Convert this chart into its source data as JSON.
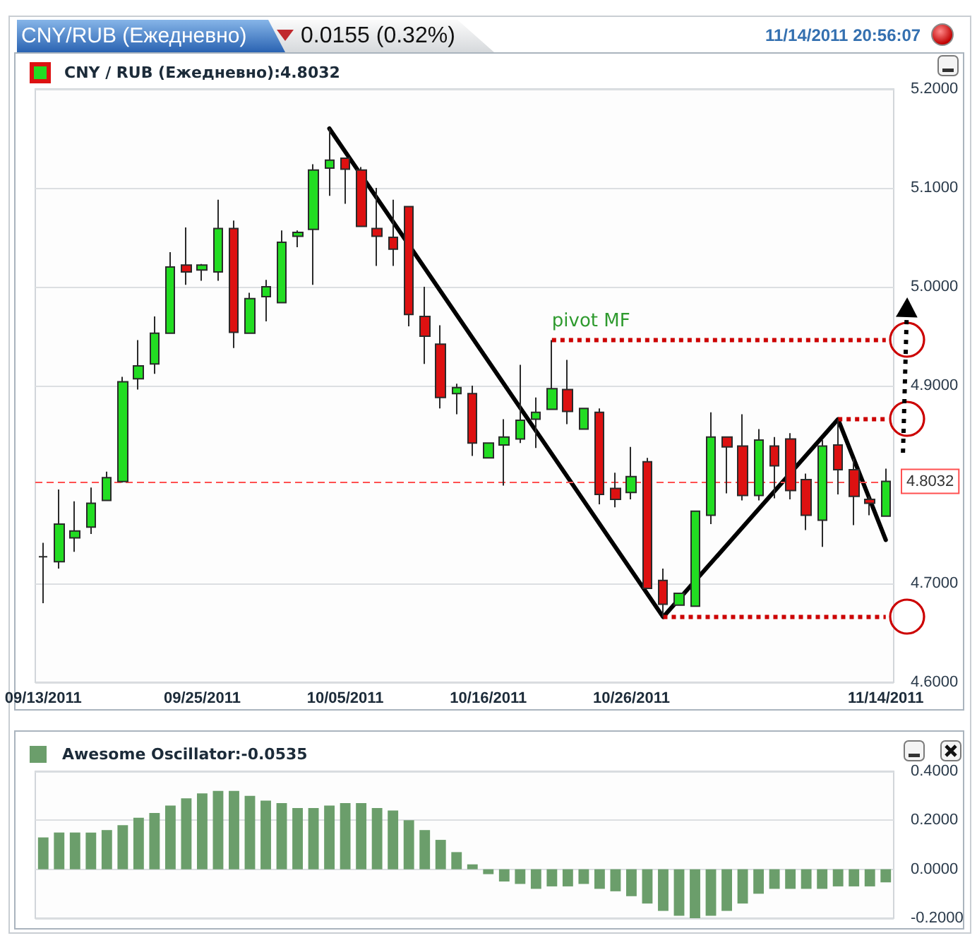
{
  "chart_data": [
    {
      "type": "candlestick",
      "title": "CNY/RUB (Ежедневно)",
      "annotations": [
        "0.0155 (0.32%)",
        "11/14/2011 20:56:07"
      ],
      "categories": [
        "09/13/2011",
        null,
        null,
        null,
        null,
        null,
        null,
        null,
        null,
        null,
        "09/25/2011",
        null,
        null,
        null,
        null,
        null,
        null,
        null,
        null,
        "10/05/2011",
        null,
        null,
        null,
        null,
        null,
        null,
        null,
        null,
        "10/16/2011",
        null,
        null,
        null,
        null,
        null,
        null,
        null,
        null,
        "10/26/2011",
        null,
        null,
        null,
        null,
        null,
        null,
        null,
        null,
        null,
        null,
        null,
        null,
        null,
        null,
        null,
        "11/14/2011"
      ],
      "series": [
        {
          "name": "CNY / RUB (Ежедневно):4.8032",
          "ohlc": [
            [
              4.727,
              4.741,
              4.68,
              4.727
            ],
            [
              4.722,
              4.795,
              4.715,
              4.76
            ],
            [
              4.746,
              4.783,
              4.732,
              4.753
            ],
            [
              4.757,
              4.797,
              4.75,
              4.781
            ],
            [
              4.784,
              4.813,
              4.784,
              4.807
            ],
            [
              4.803,
              4.909,
              4.802,
              4.904
            ],
            [
              4.907,
              4.946,
              4.896,
              4.92
            ],
            [
              4.922,
              4.97,
              4.912,
              4.953
            ],
            [
              4.953,
              5.035,
              4.953,
              5.02
            ],
            [
              5.022,
              5.06,
              5.002,
              5.015
            ],
            [
              5.017,
              5.023,
              5.006,
              5.022
            ],
            [
              5.015,
              5.088,
              5.006,
              5.059
            ],
            [
              5.059,
              5.067,
              4.938,
              4.954
            ],
            [
              4.953,
              4.994,
              4.953,
              4.988
            ],
            [
              4.99,
              5.007,
              4.965,
              5.0
            ],
            [
              4.984,
              5.057,
              4.984,
              5.045
            ],
            [
              5.051,
              5.057,
              5.04,
              5.055
            ],
            [
              5.058,
              5.124,
              5.002,
              5.118
            ],
            [
              5.12,
              5.16,
              5.092,
              5.128
            ],
            [
              5.13,
              5.13,
              5.084,
              5.119
            ],
            [
              5.118,
              5.121,
              5.061,
              5.061
            ],
            [
              5.059,
              5.1,
              5.021,
              5.051
            ],
            [
              5.05,
              5.088,
              5.021,
              5.038
            ],
            [
              5.081,
              5.081,
              4.96,
              4.972
            ],
            [
              4.97,
              5.0,
              4.922,
              4.95
            ],
            [
              4.942,
              4.961,
              4.877,
              4.888
            ],
            [
              4.892,
              4.902,
              4.871,
              4.898
            ],
            [
              4.892,
              4.9,
              4.829,
              4.842
            ],
            [
              4.827,
              4.842,
              4.827,
              4.842
            ],
            [
              4.84,
              4.866,
              4.799,
              4.848
            ],
            [
              4.846,
              4.921,
              4.842,
              4.865
            ],
            [
              4.866,
              4.888,
              4.837,
              4.873
            ],
            [
              4.876,
              4.946,
              4.876,
              4.897
            ],
            [
              4.896,
              4.926,
              4.861,
              4.874
            ],
            [
              4.856,
              4.877,
              4.856,
              4.877
            ],
            [
              4.873,
              4.877,
              4.78,
              4.79
            ],
            [
              4.796,
              4.812,
              4.777,
              4.785
            ],
            [
              4.792,
              4.838,
              4.785,
              4.808
            ],
            [
              4.823,
              4.827,
              4.695,
              4.695
            ],
            [
              4.703,
              4.715,
              4.666,
              4.679
            ],
            [
              4.678,
              4.69,
              4.678,
              4.69
            ],
            [
              4.677,
              4.773,
              4.677,
              4.773
            ],
            [
              4.769,
              4.873,
              4.76,
              4.848
            ],
            [
              4.848,
              4.848,
              4.791,
              4.838
            ],
            [
              4.839,
              4.871,
              4.784,
              4.789
            ],
            [
              4.789,
              4.856,
              4.784,
              4.845
            ],
            [
              4.839,
              4.848,
              4.786,
              4.819
            ],
            [
              4.846,
              4.852,
              4.785,
              4.794
            ],
            [
              4.805,
              4.811,
              4.754,
              4.769
            ],
            [
              4.764,
              4.845,
              4.737,
              4.839
            ],
            [
              4.84,
              4.866,
              4.79,
              4.815
            ],
            [
              4.815,
              4.826,
              4.759,
              4.788
            ],
            [
              4.785,
              4.788,
              4.769,
              4.781
            ],
            [
              4.768,
              4.816,
              4.768,
              4.8032
            ]
          ],
          "colors": [
            "#2a2a2a",
            "#22dd22",
            "#22dd22",
            "#22dd22",
            "#22dd22",
            "#22dd22",
            "#22dd22",
            "#22dd22",
            "#22dd22",
            "#dd1111",
            "#22dd22",
            "#22dd22",
            "#dd1111",
            "#22dd22",
            "#22dd22",
            "#22dd22",
            "#22dd22",
            "#22dd22",
            "#22dd22",
            "#dd1111",
            "#dd1111",
            "#dd1111",
            "#dd1111",
            "#dd1111",
            "#dd1111",
            "#dd1111",
            "#22dd22",
            "#dd1111",
            "#22dd22",
            "#22dd22",
            "#22dd22",
            "#22dd22",
            "#22dd22",
            "#dd1111",
            "#22dd22",
            "#dd1111",
            "#dd1111",
            "#22dd22",
            "#dd1111",
            "#dd1111",
            "#22dd22",
            "#22dd22",
            "#22dd22",
            "#dd1111",
            "#dd1111",
            "#22dd22",
            "#dd1111",
            "#dd1111",
            "#dd1111",
            "#22dd22",
            "#dd1111",
            "#dd1111",
            "#dd1111",
            "#22dd22"
          ]
        },
        {
          "type": "line",
          "color": "#000000",
          "values": [
            null,
            null,
            null,
            null,
            null,
            null,
            null,
            null,
            null,
            null,
            null,
            null,
            null,
            null,
            null,
            null,
            null,
            null,
            5.16,
            null,
            null,
            null,
            null,
            null,
            null,
            null,
            null,
            null,
            null,
            null,
            null,
            null,
            null,
            null,
            null,
            null,
            null,
            null,
            null,
            4.666,
            null,
            null,
            null,
            null,
            null,
            null,
            null,
            null,
            null,
            null,
            4.866,
            null,
            null,
            4.744
          ]
        },
        {
          "name": "pivot MF",
          "type": "line",
          "color": "#cc0000",
          "line_style": "dotted",
          "values": [
            null,
            null,
            null,
            null,
            null,
            null,
            null,
            null,
            null,
            null,
            null,
            null,
            null,
            null,
            null,
            null,
            null,
            null,
            null,
            null,
            null,
            null,
            null,
            null,
            null,
            null,
            null,
            null,
            null,
            null,
            null,
            null,
            4.946,
            null,
            null,
            null,
            null,
            null,
            null,
            null,
            null,
            null,
            null,
            null,
            null,
            null,
            null,
            null,
            null,
            null,
            null,
            null,
            null,
            4.946
          ]
        },
        {
          "type": "line",
          "color": "#cc0000",
          "line_style": "dotted",
          "values": [
            null,
            null,
            null,
            null,
            null,
            null,
            null,
            null,
            null,
            null,
            null,
            null,
            null,
            null,
            null,
            null,
            null,
            null,
            null,
            null,
            null,
            null,
            null,
            null,
            null,
            null,
            null,
            null,
            null,
            null,
            null,
            null,
            null,
            null,
            null,
            null,
            null,
            null,
            null,
            null,
            null,
            null,
            null,
            null,
            null,
            null,
            null,
            null,
            null,
            null,
            4.866,
            null,
            null,
            4.866
          ]
        },
        {
          "type": "line",
          "color": "#cc0000",
          "line_style": "dotted",
          "values": [
            null,
            null,
            null,
            null,
            null,
            null,
            null,
            null,
            null,
            null,
            null,
            null,
            null,
            null,
            null,
            null,
            null,
            null,
            null,
            null,
            null,
            null,
            null,
            null,
            null,
            null,
            null,
            null,
            null,
            null,
            null,
            null,
            null,
            null,
            null,
            null,
            null,
            null,
            null,
            4.666,
            null,
            null,
            null,
            null,
            null,
            null,
            null,
            null,
            null,
            null,
            null,
            null,
            null,
            4.666
          ]
        }
      ],
      "ylim": [
        4.6,
        5.2
      ],
      "yticks": [
        {
          "value": 4.6,
          "label": "4.6000"
        },
        {
          "value": 4.7,
          "label": "4.7000"
        },
        {
          "value": 4.9,
          "label": "4.9000"
        },
        {
          "value": 5.0,
          "label": "5.0000"
        },
        {
          "value": 5.1,
          "label": "5.1000"
        },
        {
          "value": 5.2,
          "label": "5.2000"
        }
      ],
      "ref_lines": [
        {
          "axis": "y",
          "value": 4.8032,
          "label": "4.8032",
          "color": "#ff5050",
          "line_style": "dashed"
        }
      ],
      "grid": "y",
      "legend": "top left"
    },
    {
      "type": "bar",
      "categories": [
        null,
        null,
        null,
        null,
        null,
        null,
        null,
        null,
        null,
        null,
        null,
        null,
        null,
        null,
        null,
        null,
        null,
        null,
        null,
        null,
        null,
        null,
        null,
        null,
        null,
        null,
        null,
        null,
        null,
        null,
        null,
        null,
        null,
        null,
        null,
        null,
        null,
        null,
        null,
        null,
        null,
        null,
        null,
        null,
        null,
        null,
        null,
        null,
        null,
        null,
        null,
        null,
        null,
        null
      ],
      "series": [
        {
          "name": "Awesome Oscillator:-0.0535",
          "color": "#6b9e6b",
          "values": [
            0.13,
            0.15,
            0.15,
            0.15,
            0.16,
            0.18,
            0.21,
            0.23,
            0.26,
            0.29,
            0.31,
            0.32,
            0.32,
            0.3,
            0.28,
            0.27,
            0.25,
            0.25,
            0.26,
            0.27,
            0.27,
            0.25,
            0.24,
            0.2,
            0.16,
            0.12,
            0.07,
            0.02,
            -0.02,
            -0.05,
            -0.06,
            -0.08,
            -0.07,
            -0.07,
            -0.06,
            -0.08,
            -0.09,
            -0.11,
            -0.14,
            -0.17,
            -0.19,
            -0.2,
            -0.19,
            -0.17,
            -0.14,
            -0.1,
            -0.08,
            -0.08,
            -0.08,
            -0.08,
            -0.07,
            -0.07,
            -0.07,
            -0.0535
          ]
        }
      ],
      "ylim": [
        -0.2,
        0.4
      ],
      "yticks": [
        {
          "value": -0.2,
          "label": "-0.2000"
        },
        {
          "value": 0,
          "label": "0.0000"
        },
        {
          "value": 0.2,
          "label": "0.2000"
        },
        {
          "value": 0.4,
          "label": "0.4000"
        }
      ],
      "grid": "y",
      "legend": "top left",
      "tick_labels": "y"
    }
  ]
}
